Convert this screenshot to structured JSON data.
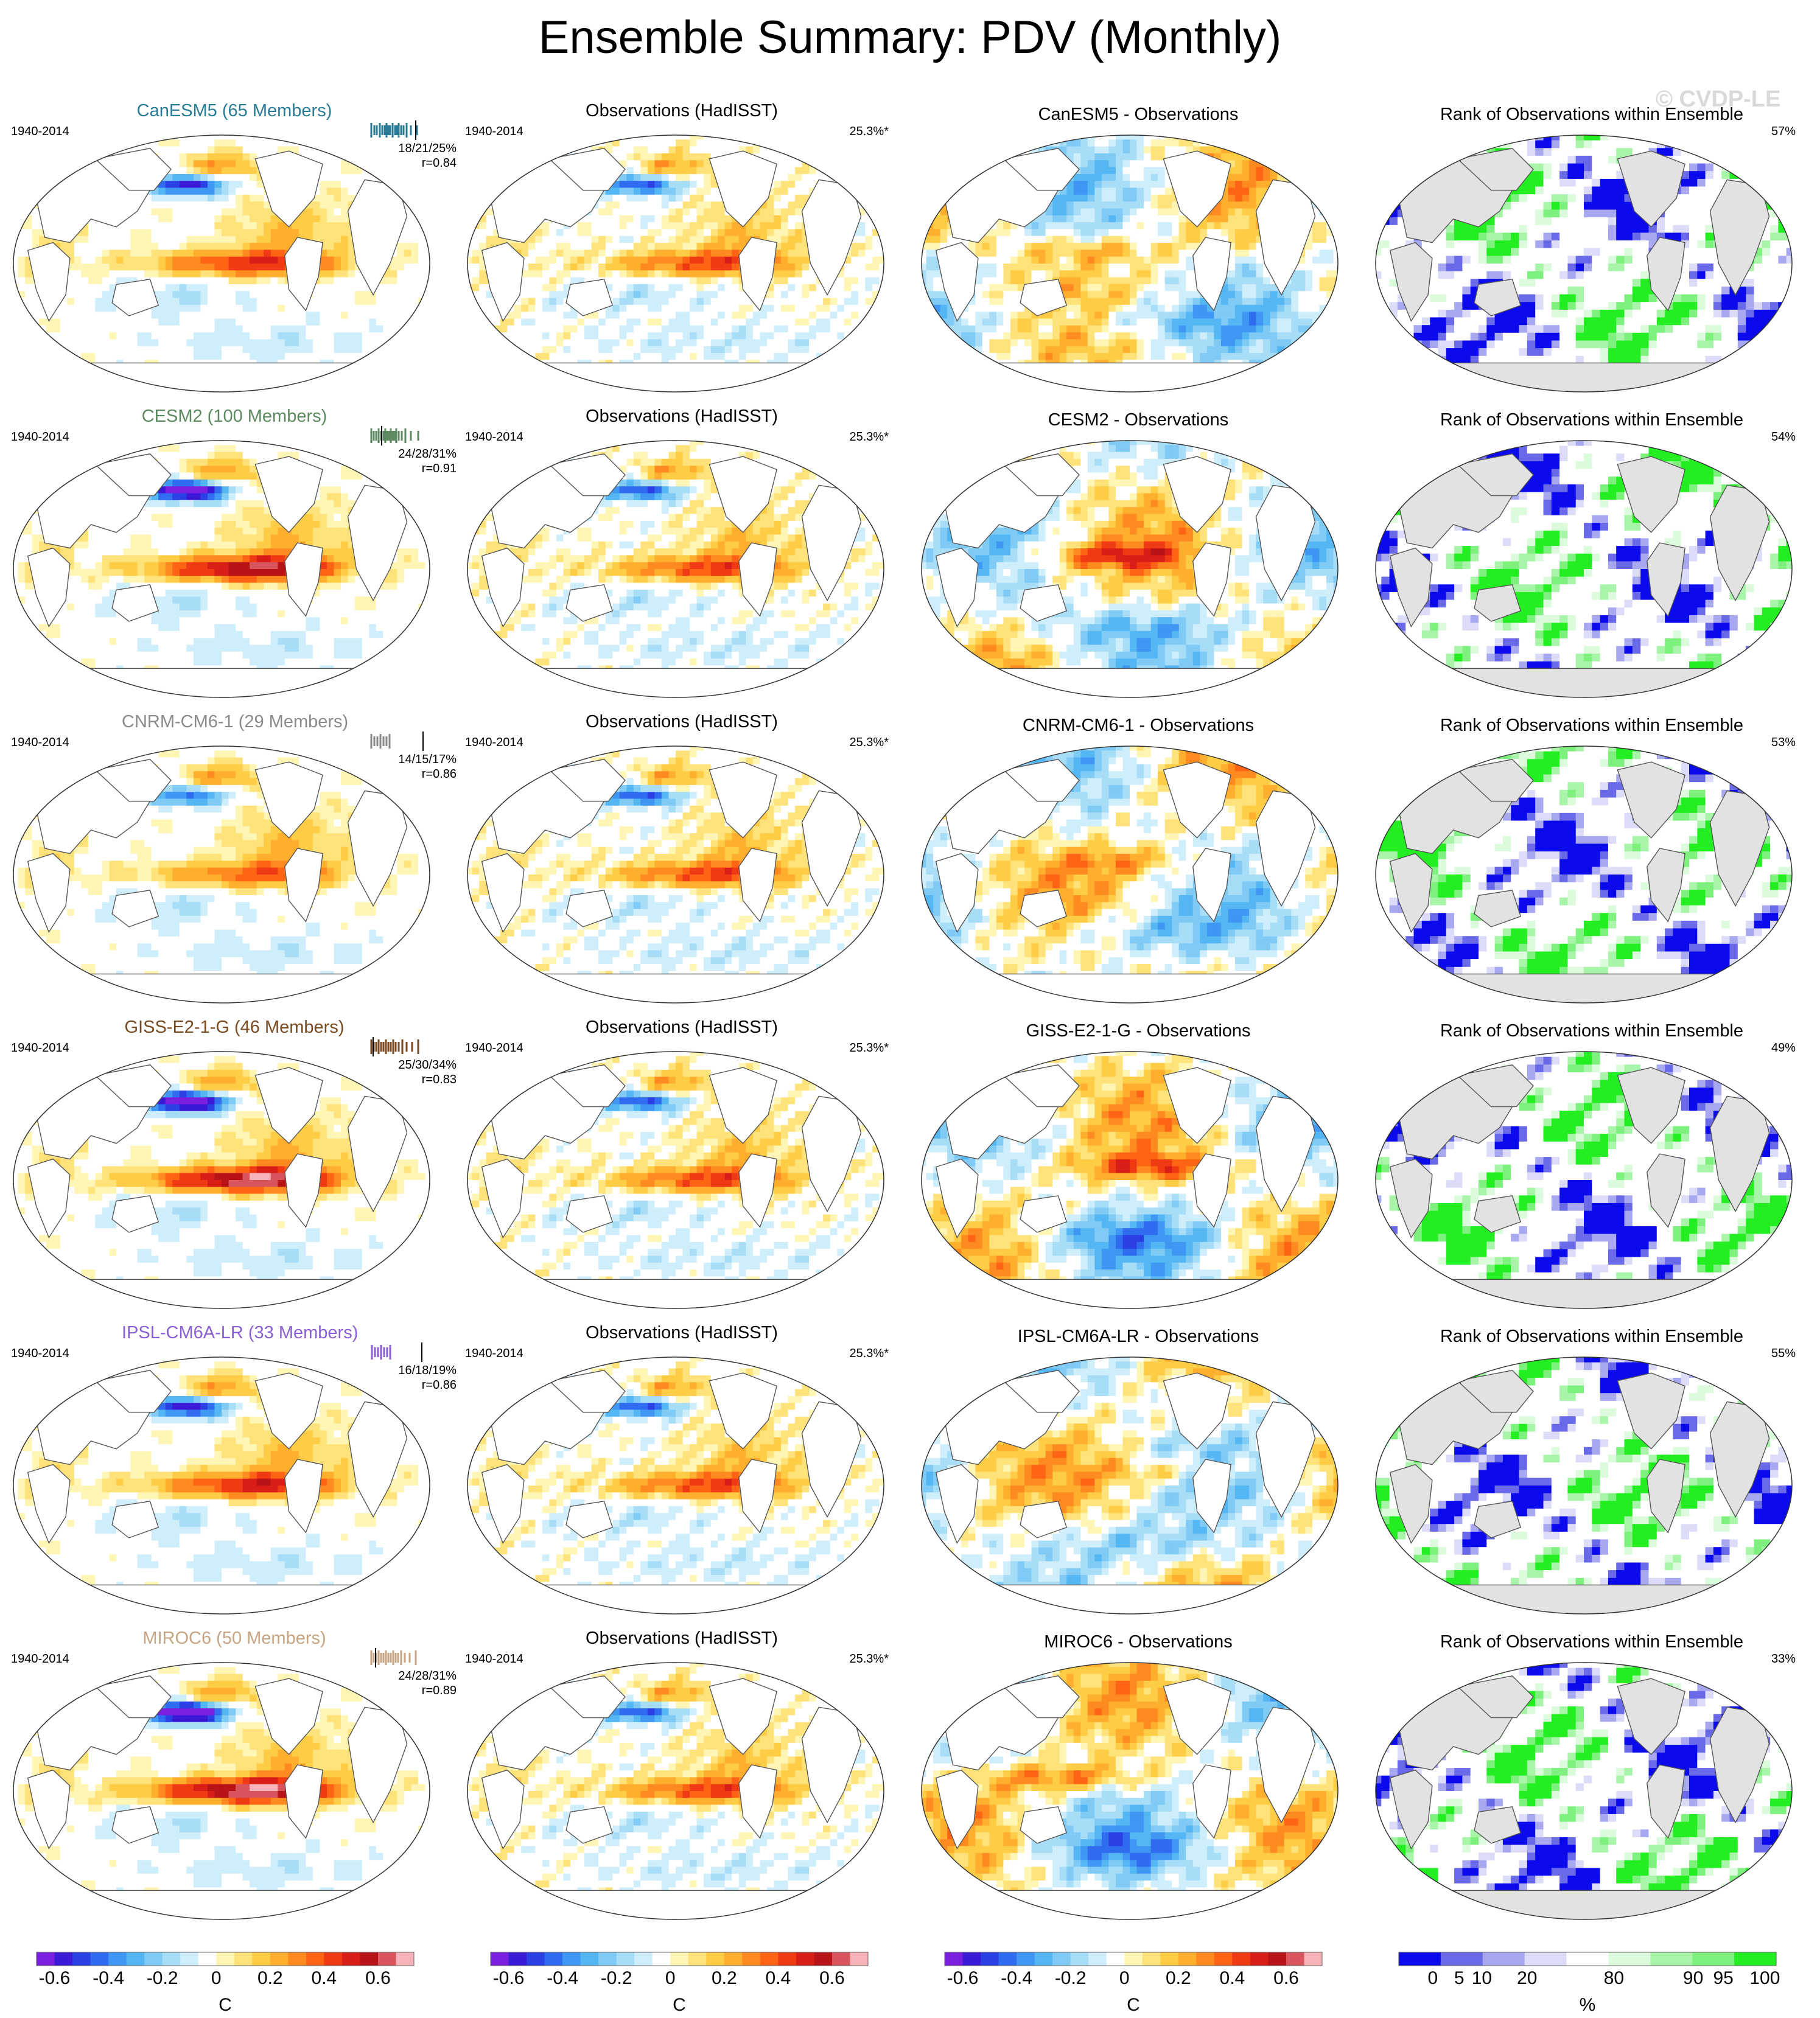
{
  "page": {
    "title": "Ensemble Summary: PDV (Monthly)",
    "watermark": "© CVDP-LE"
  },
  "rows": [
    {
      "model": "CanESM5",
      "model_title": "CanESM5 (65 Members)",
      "color": "#2a7b96",
      "period": "1940-2014",
      "stats": "18/21/25%",
      "r": "r=0.84",
      "obs_title": "Observations (HadISST)",
      "obs_pct": "25.3%*",
      "diff_title": "CanESM5 - Observations",
      "rank_title": "Rank of Observations within Ensemble",
      "rank_pct": "57%",
      "spread": [
        0.05,
        0.1,
        0.14,
        0.19,
        0.23,
        0.27,
        0.3,
        0.33,
        0.36,
        0.4,
        0.44,
        0.47,
        0.5,
        0.54,
        0.58,
        0.63,
        0.7,
        0.8
      ],
      "obs_tick": 0.78,
      "model_amp": 1.0,
      "diff_mode": 1,
      "rank_mode": 1
    },
    {
      "model": "CESM2",
      "model_title": "CESM2 (100 Members)",
      "color": "#5e8a61",
      "period": "1940-2014",
      "stats": "24/28/31%",
      "r": "r=0.91",
      "obs_title": "Observations (HadISST)",
      "obs_pct": "25.3%*",
      "diff_title": "CESM2 - Observations",
      "rank_title": "Rank of Observations within Ensemble",
      "rank_pct": "54%",
      "spread": [
        0.05,
        0.09,
        0.13,
        0.17,
        0.21,
        0.25,
        0.28,
        0.31,
        0.34,
        0.37,
        0.4,
        0.43,
        0.46,
        0.5,
        0.55,
        0.61,
        0.7,
        0.82
      ],
      "obs_tick": 0.22,
      "model_amp": 1.35,
      "diff_mode": 2,
      "rank_mode": 2
    },
    {
      "model": "CNRM-CM6-1",
      "model_title": "CNRM-CM6-1 (29 Members)",
      "color": "#8a8a8a",
      "period": "1940-2014",
      "stats": "14/15/17%",
      "r": "r=0.86",
      "obs_title": "Observations (HadISST)",
      "obs_pct": "25.3%*",
      "diff_title": "CNRM-CM6-1 - Observations",
      "rank_title": "Rank of Observations within Ensemble",
      "rank_pct": "53%",
      "spread": [
        0.05,
        0.1,
        0.15,
        0.2,
        0.25,
        0.3,
        0.35
      ],
      "obs_tick": 0.9,
      "model_amp": 0.75,
      "diff_mode": 3,
      "rank_mode": 3
    },
    {
      "model": "GISS-E2-1-G",
      "model_title": "GISS-E2-1-G (46 Members)",
      "color": "#7a4a20",
      "period": "1940-2014",
      "stats": "25/30/34%",
      "r": "r=0.83",
      "obs_title": "Observations (HadISST)",
      "obs_pct": "25.3%*",
      "diff_title": "GISS-E2-1-G - Observations",
      "rank_title": "Rank of Observations within Ensemble",
      "rank_pct": "49%",
      "spread": [
        0.05,
        0.09,
        0.13,
        0.17,
        0.21,
        0.25,
        0.29,
        0.33,
        0.37,
        0.41,
        0.45,
        0.5,
        0.56,
        0.63,
        0.72,
        0.82
      ],
      "obs_tick": 0.08,
      "model_amp": 1.45,
      "diff_mode": 4,
      "rank_mode": 4
    },
    {
      "model": "IPSL-CM6A-LR",
      "model_title": "IPSL-CM6A-LR (33 Members)",
      "color": "#8a5fd4",
      "period": "1940-2014",
      "stats": "16/18/19%",
      "r": "r=0.86",
      "obs_title": "Observations (HadISST)",
      "obs_pct": "25.3%*",
      "diff_title": "IPSL-CM6A-LR - Observations",
      "rank_title": "Rank of Observations within Ensemble",
      "rank_pct": "55%",
      "spread": [
        0.06,
        0.11,
        0.16,
        0.21,
        0.26,
        0.31,
        0.36
      ],
      "obs_tick": 0.88,
      "model_amp": 1.05,
      "diff_mode": 5,
      "rank_mode": 5
    },
    {
      "model": "MIROC6",
      "model_title": "MIROC6 (50 Members)",
      "color": "#c8a582",
      "period": "1940-2014",
      "stats": "24/28/31%",
      "r": "r=0.89",
      "obs_title": "Observations (HadISST)",
      "obs_pct": "25.3%*",
      "diff_title": "MIROC6 - Observations",
      "rank_title": "Rank of Observations within Ensemble",
      "rank_pct": "33%",
      "spread": [
        0.05,
        0.09,
        0.13,
        0.17,
        0.21,
        0.25,
        0.29,
        0.33,
        0.37,
        0.41,
        0.45,
        0.49,
        0.54,
        0.6,
        0.68,
        0.78
      ],
      "obs_tick": 0.12,
      "model_amp": 1.5,
      "diff_mode": 6,
      "rank_mode": 6
    }
  ],
  "colorbars": {
    "sst": {
      "colors": [
        "#7a1fe0",
        "#3a1ad6",
        "#2a3fe4",
        "#2f6cf0",
        "#3f97f3",
        "#54b7f4",
        "#7fcbf6",
        "#a8ddf8",
        "#cfeefb",
        "#ffffff",
        "#fff6b5",
        "#ffe37a",
        "#ffcc45",
        "#ffae2e",
        "#ff8a1f",
        "#ff6414",
        "#f03a14",
        "#d81e16",
        "#b81418",
        "#d8555e",
        "#f5b2b8"
      ],
      "ticks": [
        "-0.6",
        "-0.4",
        "-0.2",
        "0",
        "0.2",
        "0.4",
        "0.6"
      ],
      "unit": "C"
    },
    "rank": {
      "colors": [
        "#0a0aec",
        "#6a6ae8",
        "#a8a8f0",
        "#dcdcf8",
        "#ffffff",
        "#dcfadc",
        "#a8f4a8",
        "#7ef07e",
        "#22ee22"
      ],
      "ticks": [
        "0",
        "5",
        "10",
        "20",
        "80",
        "90",
        "95",
        "100"
      ],
      "unit": "%"
    }
  }
}
